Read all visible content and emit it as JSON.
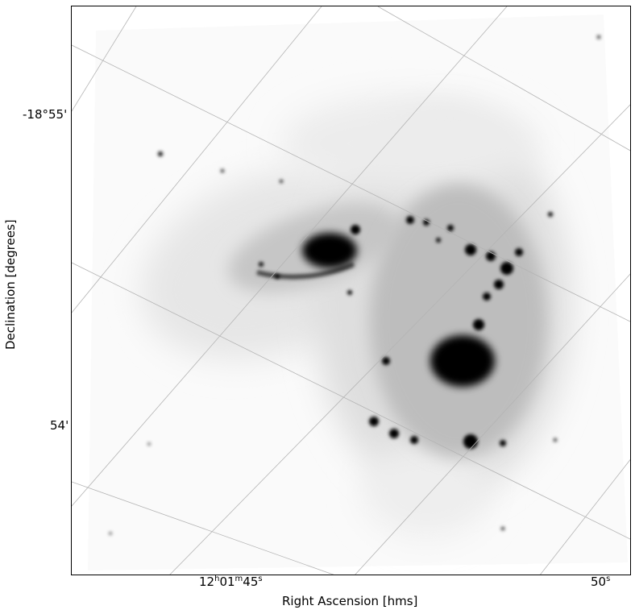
{
  "axes": {
    "xlabel": "Right Ascension [hms]",
    "ylabel": "Declination [degrees]",
    "x_ticks": [
      {
        "h": "12",
        "h_unit": "h",
        "m": "01",
        "m_unit": "m",
        "s": "45",
        "s_unit": "s"
      },
      {
        "s": "50",
        "s_unit": "s"
      }
    ],
    "y_ticks": [
      "-18°55'",
      "54'"
    ]
  },
  "image": {
    "colormap": "gray_r",
    "subject": "interacting galaxy pair",
    "grid": true
  }
}
